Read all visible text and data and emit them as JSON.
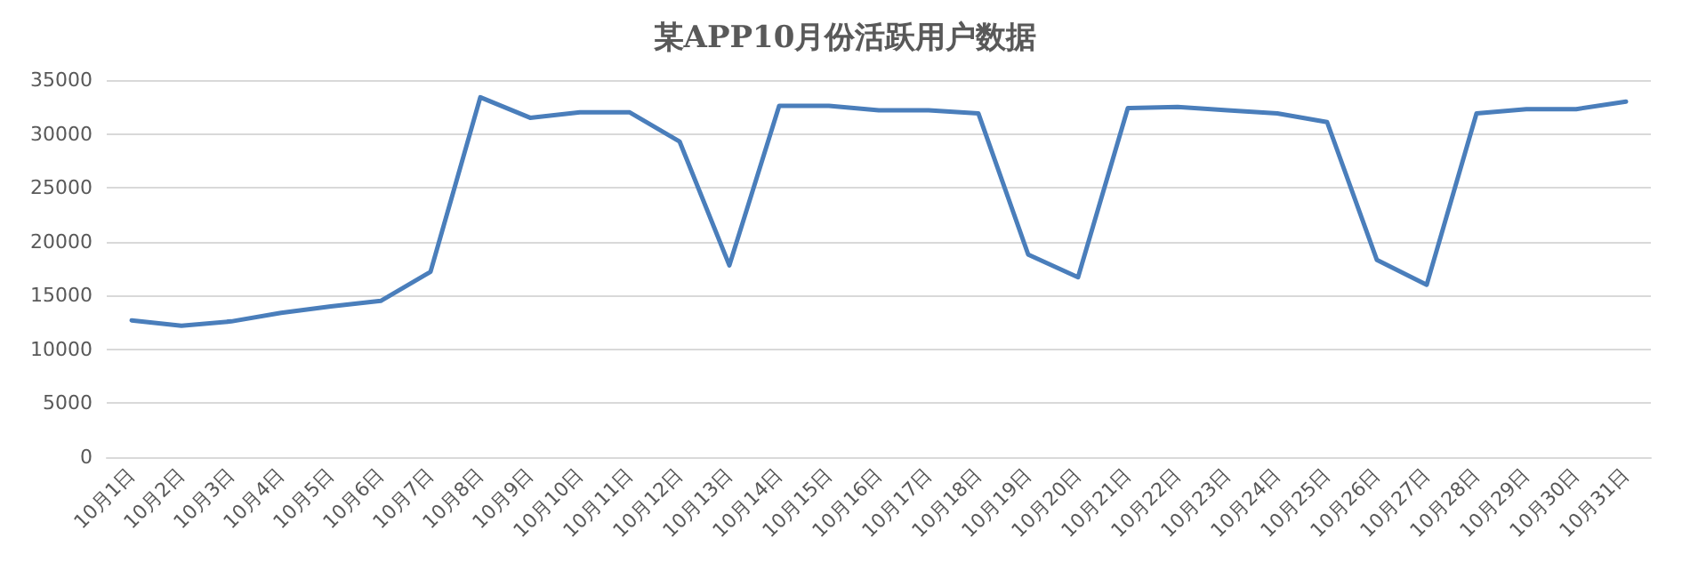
{
  "chart_data": {
    "type": "line",
    "title": "某APP10月份活跃用户数据",
    "categories": [
      "10月1日",
      "10月2日",
      "10月3日",
      "10月4日",
      "10月5日",
      "10月6日",
      "10月7日",
      "10月8日",
      "10月9日",
      "10月10日",
      "10月11日",
      "10月12日",
      "10月13日",
      "10月14日",
      "10月15日",
      "10月16日",
      "10月17日",
      "10月18日",
      "10月19日",
      "10月20日",
      "10月21日",
      "10月22日",
      "10月23日",
      "10月24日",
      "10月25日",
      "10月26日",
      "10月27日",
      "10月28日",
      "10月29日",
      "10月30日",
      "10月31日"
    ],
    "series": [
      {
        "color": "#4a7ebb",
        "values": [
          12700,
          12200,
          12600,
          13400,
          14000,
          14500,
          17200,
          33400,
          31500,
          32000,
          32000,
          29300,
          17800,
          32600,
          32600,
          32200,
          32200,
          31900,
          18800,
          16700,
          32400,
          32500,
          32200,
          31900,
          31100,
          18300,
          16000,
          31900,
          32300,
          32300,
          33000
        ]
      }
    ],
    "ylim": [
      0,
      35000
    ],
    "yticks": [
      0,
      5000,
      10000,
      15000,
      20000,
      25000,
      30000,
      35000
    ],
    "grid": "y",
    "marker": "none",
    "line_style": "solid"
  }
}
